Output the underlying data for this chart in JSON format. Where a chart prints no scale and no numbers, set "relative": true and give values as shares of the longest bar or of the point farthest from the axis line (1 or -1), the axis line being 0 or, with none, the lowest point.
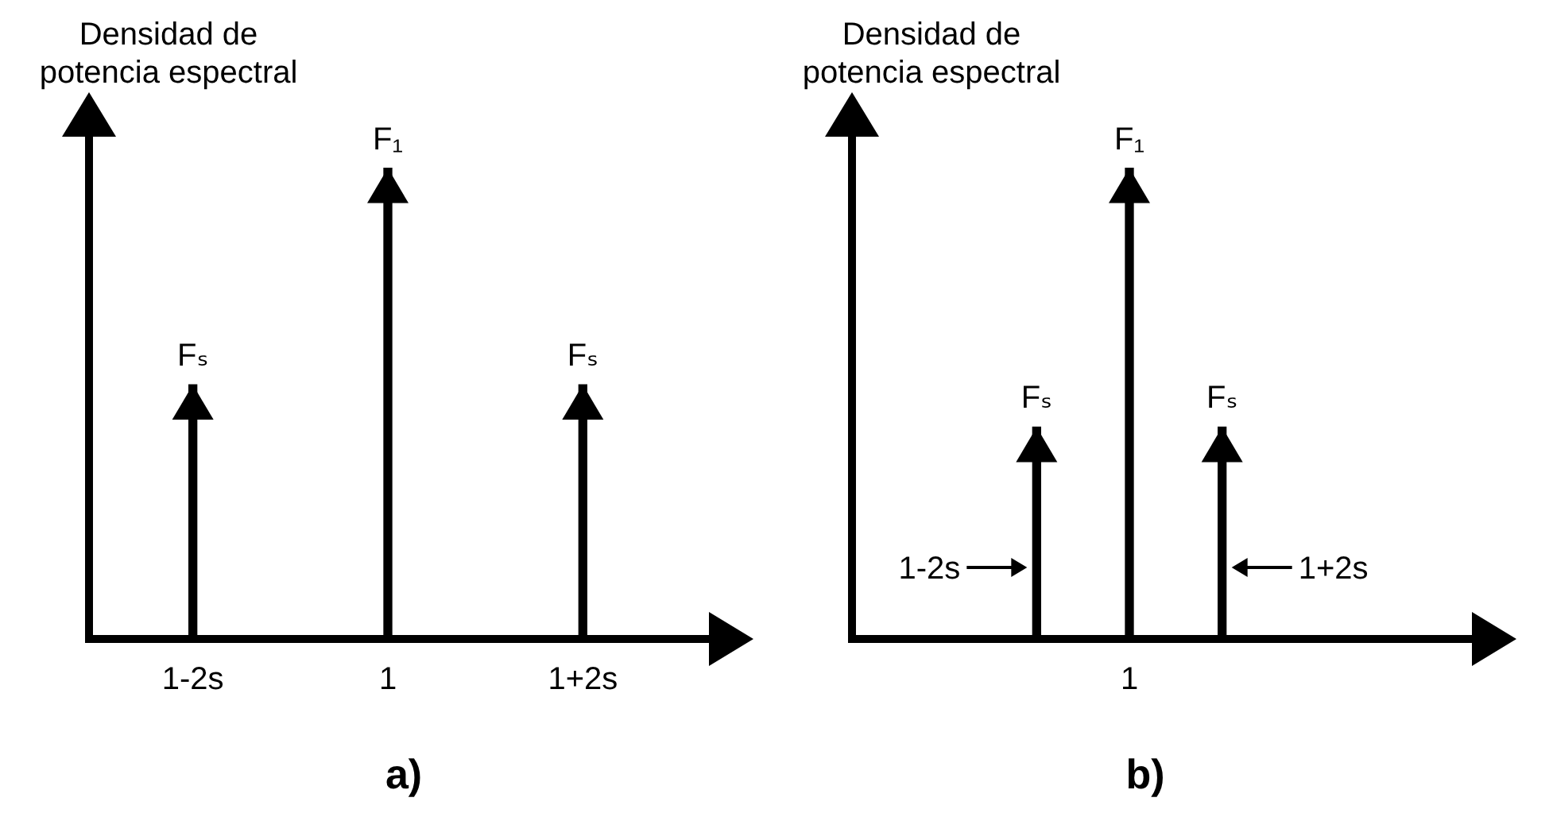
{
  "chart_data": [
    {
      "type": "bar",
      "title": "a)",
      "ylabel": "Densidad de\npotencia espectral",
      "categories": [
        "1-2s",
        "1",
        "1+2s"
      ],
      "values": [
        0.54,
        1,
        0.54
      ],
      "annotations": [
        {
          "text": "Fₛ",
          "y": 0.54
        },
        {
          "text": "F₁",
          "y": 1
        },
        {
          "text": "Fₛ",
          "y": 0.54
        }
      ],
      "color": "#000000",
      "relative": true,
      "grid": false,
      "legend": false
    },
    {
      "type": "bar",
      "title": "b)",
      "ylabel": "Densidad de\npotencia espectral",
      "categories": [
        null,
        "1",
        null
      ],
      "values": [
        0.45,
        1,
        0.45
      ],
      "annotations": [
        {
          "text": "Fₛ",
          "y": 0.45
        },
        {
          "text": "F₁",
          "y": 1
        },
        {
          "text": "Fₛ",
          "y": 0.45
        },
        "1-2s",
        "1+2s"
      ],
      "color": "#000000",
      "relative": true,
      "grid": false,
      "legend": false
    }
  ]
}
